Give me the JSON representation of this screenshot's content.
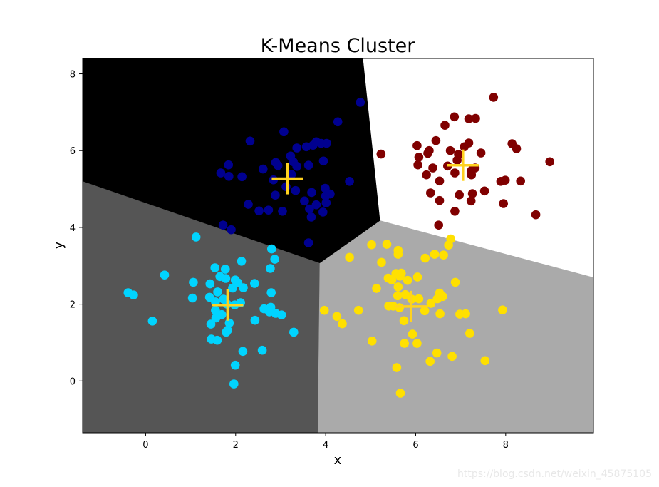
{
  "chart_data": {
    "type": "scatter",
    "title": "K-Means Cluster",
    "xlabel": "x",
    "ylabel": "y",
    "xlim": [
      -1.4,
      9.95
    ],
    "ylim": [
      -1.35,
      8.4
    ],
    "xticks": [
      0,
      2,
      4,
      6,
      8
    ],
    "yticks": [
      0,
      2,
      4,
      6,
      8
    ],
    "grid": false,
    "region_colors": {
      "top_left": "#000000",
      "top_right": "#ffffff",
      "bottom_left": "#555555",
      "bottom_right": "#aaaaaa"
    },
    "centroid_color": "#ffd21f",
    "centroids": [
      [
        3.15,
        5.27
      ],
      [
        7.05,
        5.62
      ],
      [
        1.82,
        1.98
      ],
      [
        5.9,
        1.94
      ]
    ],
    "series": [
      {
        "color": "#000090",
        "points": [
          [
            3.62,
            3.6
          ],
          [
            4.77,
            7.26
          ],
          [
            4.27,
            6.75
          ],
          [
            2.32,
            6.25
          ],
          [
            3.07,
            6.49
          ],
          [
            2.89,
            5.69
          ],
          [
            3.22,
            5.86
          ],
          [
            3.28,
            5.71
          ],
          [
            3.36,
            6.07
          ],
          [
            3.57,
            6.1
          ],
          [
            3.79,
            6.23
          ],
          [
            3.9,
            6.19
          ],
          [
            4.02,
            6.19
          ],
          [
            3.62,
            5.62
          ],
          [
            3.95,
            5.73
          ],
          [
            3.72,
            6.14
          ],
          [
            2.14,
            5.32
          ],
          [
            2.61,
            5.52
          ],
          [
            1.84,
            5.63
          ],
          [
            1.67,
            5.42
          ],
          [
            1.85,
            5.33
          ],
          [
            2.84,
            5.24
          ],
          [
            3.24,
            5.38
          ],
          [
            3.12,
            5.06
          ],
          [
            2.88,
            4.84
          ],
          [
            3.33,
            4.96
          ],
          [
            3.69,
            4.91
          ],
          [
            3.99,
            5.02
          ],
          [
            4.1,
            4.87
          ],
          [
            4.0,
            4.82
          ],
          [
            3.53,
            4.69
          ],
          [
            3.64,
            4.48
          ],
          [
            4.01,
            4.64
          ],
          [
            3.79,
            4.59
          ],
          [
            3.94,
            4.4
          ],
          [
            3.68,
            4.27
          ],
          [
            2.28,
            4.6
          ],
          [
            2.52,
            4.43
          ],
          [
            2.73,
            4.45
          ],
          [
            3.04,
            4.42
          ],
          [
            1.72,
            4.06
          ],
          [
            1.9,
            3.94
          ],
          [
            4.53,
            5.2
          ],
          [
            2.94,
            5.61
          ],
          [
            3.36,
            5.59
          ]
        ]
      },
      {
        "color": "#800000",
        "points": [
          [
            7.73,
            7.39
          ],
          [
            7.18,
            6.83
          ],
          [
            7.33,
            6.84
          ],
          [
            6.86,
            6.88
          ],
          [
            6.65,
            6.66
          ],
          [
            5.23,
            5.91
          ],
          [
            6.03,
            6.13
          ],
          [
            6.3,
            6.0
          ],
          [
            6.45,
            6.26
          ],
          [
            6.77,
            6.0
          ],
          [
            6.95,
            5.9
          ],
          [
            7.08,
            6.1
          ],
          [
            7.18,
            6.2
          ],
          [
            7.45,
            5.94
          ],
          [
            8.14,
            6.18
          ],
          [
            8.24,
            6.05
          ],
          [
            6.07,
            5.83
          ],
          [
            6.27,
            5.93
          ],
          [
            6.05,
            5.63
          ],
          [
            6.24,
            5.37
          ],
          [
            6.38,
            5.55
          ],
          [
            6.53,
            5.21
          ],
          [
            6.71,
            5.6
          ],
          [
            6.87,
            5.42
          ],
          [
            6.92,
            5.75
          ],
          [
            7.24,
            5.48
          ],
          [
            7.32,
            5.55
          ],
          [
            7.24,
            5.37
          ],
          [
            7.89,
            5.2
          ],
          [
            7.99,
            5.23
          ],
          [
            8.33,
            5.21
          ],
          [
            6.33,
            4.9
          ],
          [
            6.53,
            4.7
          ],
          [
            6.97,
            4.85
          ],
          [
            7.26,
            4.88
          ],
          [
            7.53,
            4.95
          ],
          [
            7.23,
            4.69
          ],
          [
            6.87,
            4.42
          ],
          [
            7.95,
            4.62
          ],
          [
            8.67,
            4.33
          ],
          [
            6.51,
            4.06
          ],
          [
            8.98,
            5.71
          ]
        ]
      },
      {
        "color": "#00d4ff",
        "points": [
          [
            1.12,
            3.75
          ],
          [
            2.8,
            3.44
          ],
          [
            2.87,
            3.17
          ],
          [
            2.13,
            3.12
          ],
          [
            1.54,
            2.95
          ],
          [
            1.77,
            2.91
          ],
          [
            1.65,
            2.72
          ],
          [
            1.78,
            2.67
          ],
          [
            1.99,
            2.63
          ],
          [
            2.05,
            2.56
          ],
          [
            1.43,
            2.53
          ],
          [
            1.6,
            2.32
          ],
          [
            1.93,
            2.42
          ],
          [
            2.17,
            2.43
          ],
          [
            2.42,
            2.54
          ],
          [
            2.79,
            2.3
          ],
          [
            2.77,
            2.93
          ],
          [
            0.42,
            2.76
          ],
          [
            1.06,
            2.57
          ],
          [
            -0.39,
            2.3
          ],
          [
            -0.27,
            2.24
          ],
          [
            1.04,
            2.16
          ],
          [
            1.42,
            2.18
          ],
          [
            1.55,
            2.06
          ],
          [
            1.73,
            2.13
          ],
          [
            1.81,
            2.0
          ],
          [
            1.98,
            1.98
          ],
          [
            2.11,
            2.04
          ],
          [
            2.63,
            1.88
          ],
          [
            2.75,
            1.8
          ],
          [
            2.78,
            1.92
          ],
          [
            2.89,
            1.76
          ],
          [
            3.02,
            1.72
          ],
          [
            2.43,
            1.58
          ],
          [
            1.55,
            1.84
          ],
          [
            1.69,
            1.73
          ],
          [
            1.56,
            1.64
          ],
          [
            1.86,
            1.51
          ],
          [
            1.45,
            1.48
          ],
          [
            1.82,
            1.32
          ],
          [
            1.79,
            1.27
          ],
          [
            0.15,
            1.56
          ],
          [
            3.29,
            1.27
          ],
          [
            1.46,
            1.09
          ],
          [
            1.59,
            1.06
          ],
          [
            2.16,
            0.77
          ],
          [
            2.59,
            0.8
          ],
          [
            1.99,
            0.41
          ],
          [
            1.96,
            -0.08
          ]
        ]
      },
      {
        "color": "#ffe000",
        "points": [
          [
            6.78,
            3.7
          ],
          [
            6.73,
            3.54
          ],
          [
            6.62,
            3.28
          ],
          [
            5.61,
            3.4
          ],
          [
            5.61,
            3.3
          ],
          [
            4.53,
            3.22
          ],
          [
            5.02,
            3.55
          ],
          [
            5.36,
            3.56
          ],
          [
            6.21,
            3.2
          ],
          [
            6.42,
            3.3
          ],
          [
            5.24,
            3.09
          ],
          [
            5.68,
            2.81
          ],
          [
            5.65,
            2.73
          ],
          [
            5.82,
            2.62
          ],
          [
            5.39,
            2.68
          ],
          [
            5.47,
            2.63
          ],
          [
            6.04,
            2.71
          ],
          [
            5.56,
            2.8
          ],
          [
            5.61,
            2.45
          ],
          [
            5.13,
            2.41
          ],
          [
            6.88,
            2.57
          ],
          [
            5.6,
            2.22
          ],
          [
            5.77,
            2.25
          ],
          [
            5.91,
            2.13
          ],
          [
            6.07,
            2.14
          ],
          [
            6.53,
            2.29
          ],
          [
            6.6,
            2.2
          ],
          [
            6.34,
            2.02
          ],
          [
            6.48,
            2.14
          ],
          [
            5.4,
            1.95
          ],
          [
            5.5,
            1.95
          ],
          [
            5.64,
            1.91
          ],
          [
            6.2,
            1.83
          ],
          [
            6.54,
            1.75
          ],
          [
            6.98,
            1.74
          ],
          [
            7.11,
            1.75
          ],
          [
            7.93,
            1.85
          ],
          [
            3.97,
            1.84
          ],
          [
            4.25,
            1.68
          ],
          [
            4.37,
            1.49
          ],
          [
            4.73,
            1.84
          ],
          [
            5.74,
            1.57
          ],
          [
            5.93,
            1.22
          ],
          [
            6.03,
            0.98
          ],
          [
            5.75,
            0.98
          ],
          [
            7.2,
            1.24
          ],
          [
            5.03,
            1.04
          ],
          [
            6.47,
            0.73
          ],
          [
            6.32,
            0.51
          ],
          [
            6.81,
            0.64
          ],
          [
            5.58,
            0.35
          ],
          [
            7.54,
            0.53
          ],
          [
            5.66,
            -0.32
          ]
        ]
      }
    ]
  },
  "watermark": "https://blog.csdn.net/weixin_45875105"
}
